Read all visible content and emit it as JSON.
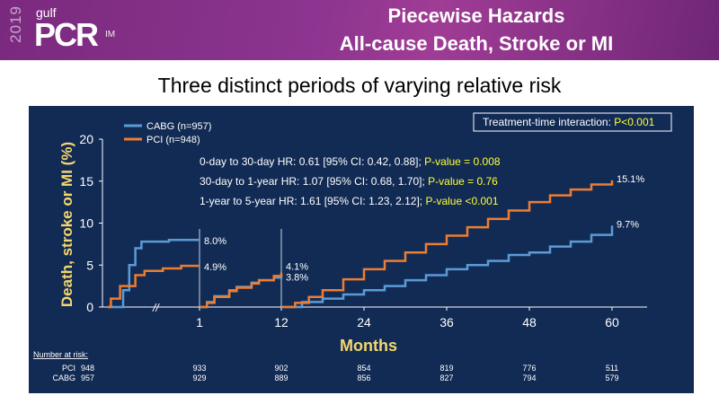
{
  "header": {
    "year": "2019",
    "brand_small": "gulf",
    "brand": "PCR",
    "brand_suffix": "IM",
    "title_line1": "Piecewise Hazards",
    "title_line2": "All-cause Death, Stroke or MI"
  },
  "subtitle": "Three distinct periods of varying relative risk",
  "chart_data": {
    "type": "line",
    "xlabel": "Months",
    "ylabel": "Death, stroke or MI (%)",
    "ylim": [
      0,
      20
    ],
    "yticks": [
      "0",
      "5",
      "10",
      "15",
      "20"
    ],
    "xticks": [
      "1",
      "12",
      "24",
      "36",
      "48",
      "60"
    ],
    "interaction": {
      "label": "Treatment-time interaction: ",
      "value": "P<0.001"
    },
    "annotations": [
      {
        "text": "0-day to 30-day HR: 0.61 [95% CI: 0.42, 0.88]; ",
        "p": "P-value = 0.008"
      },
      {
        "text": "30-day to 1-year HR: 1.07 [95% CI: 0.68, 1.70]; ",
        "p": "P-value = 0.76"
      },
      {
        "text": "1-year to 5-year HR: 1.61 [95% CI: 1.23, 2.12]; ",
        "p": "P-value  <0.001"
      }
    ],
    "series": [
      {
        "name": "CABG (n=957)",
        "color": "#5b9bd5",
        "days_0_30": [
          [
            0,
            0
          ],
          [
            5,
            2
          ],
          [
            7,
            5
          ],
          [
            9,
            7
          ],
          [
            11,
            7.8
          ],
          [
            20,
            8.0
          ],
          [
            30,
            8.0
          ]
        ],
        "months_1_12": [
          [
            1,
            0
          ],
          [
            2,
            0.6
          ],
          [
            3,
            1.3
          ],
          [
            5,
            2
          ],
          [
            6,
            2.4
          ],
          [
            8,
            2.9
          ],
          [
            9,
            3.2
          ],
          [
            11,
            3.5
          ],
          [
            12,
            3.8
          ]
        ],
        "months_12_60": [
          [
            12,
            0
          ],
          [
            15,
            0.6
          ],
          [
            18,
            1
          ],
          [
            21,
            1.5
          ],
          [
            24,
            2
          ],
          [
            27,
            2.5
          ],
          [
            30,
            3.2
          ],
          [
            33,
            3.8
          ],
          [
            36,
            4.5
          ],
          [
            39,
            5
          ],
          [
            42,
            5.5
          ],
          [
            45,
            6.2
          ],
          [
            48,
            6.5
          ],
          [
            51,
            7.2
          ],
          [
            54,
            7.8
          ],
          [
            57,
            8.6
          ],
          [
            60,
            9.7
          ]
        ],
        "end_labels": [
          "8.0%",
          "3.8%",
          "9.7%"
        ]
      },
      {
        "name": "PCI (n=948)",
        "color": "#ed7d31",
        "days_0_30": [
          [
            0,
            0
          ],
          [
            1,
            1
          ],
          [
            4,
            2.5
          ],
          [
            9,
            3.8
          ],
          [
            12,
            4.3
          ],
          [
            18,
            4.6
          ],
          [
            24,
            4.9
          ],
          [
            30,
            4.9
          ]
        ],
        "months_1_12": [
          [
            1,
            0
          ],
          [
            2,
            0.5
          ],
          [
            3,
            1.2
          ],
          [
            5,
            1.9
          ],
          [
            6,
            2.3
          ],
          [
            8,
            2.8
          ],
          [
            9,
            3.2
          ],
          [
            11,
            3.7
          ],
          [
            12,
            4.1
          ]
        ],
        "months_12_60": [
          [
            12,
            0
          ],
          [
            14,
            0.5
          ],
          [
            16,
            1.2
          ],
          [
            18,
            2
          ],
          [
            21,
            3.3
          ],
          [
            24,
            4.5
          ],
          [
            27,
            5.5
          ],
          [
            30,
            6.5
          ],
          [
            33,
            7.5
          ],
          [
            36,
            8.5
          ],
          [
            39,
            9.5
          ],
          [
            42,
            10.5
          ],
          [
            45,
            11.5
          ],
          [
            48,
            12.5
          ],
          [
            51,
            13.3
          ],
          [
            54,
            14
          ],
          [
            57,
            14.6
          ],
          [
            60,
            15.1
          ]
        ],
        "end_labels": [
          "4.9%",
          "4.1%",
          "15.1%"
        ]
      }
    ],
    "risk_table": {
      "title": "Number at risk:",
      "rows": [
        {
          "label": "PCI",
          "values": [
            "948",
            "933",
            "902",
            "854",
            "819",
            "776",
            "511"
          ]
        },
        {
          "label": "CABG",
          "values": [
            "957",
            "929",
            "889",
            "856",
            "827",
            "794",
            "579"
          ]
        }
      ]
    }
  }
}
